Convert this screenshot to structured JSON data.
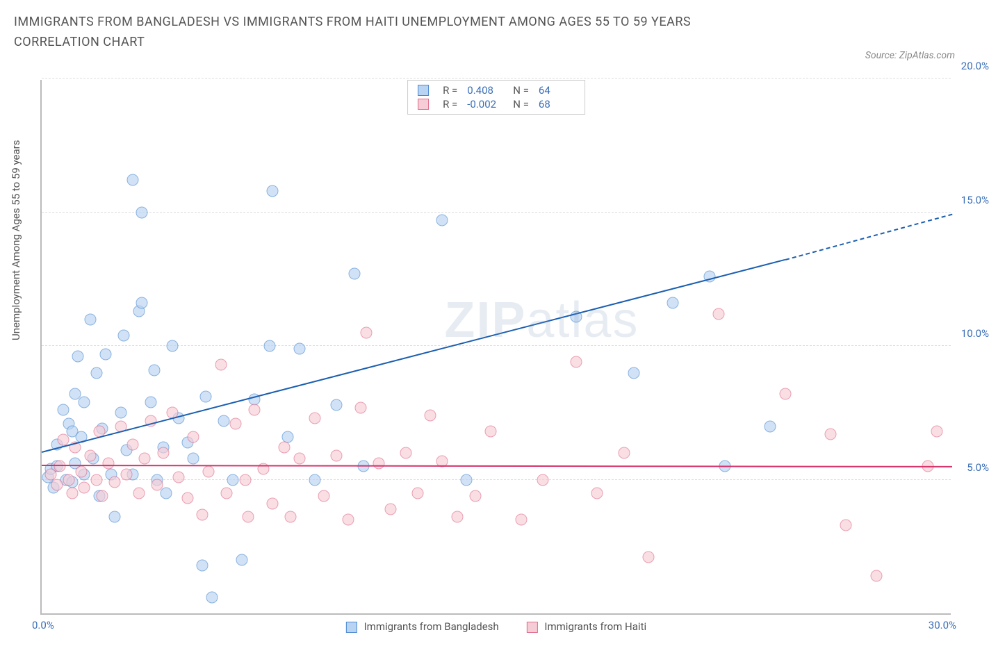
{
  "title": "IMMIGRANTS FROM BANGLADESH VS IMMIGRANTS FROM HAITI UNEMPLOYMENT AMONG AGES 55 TO 59 YEARS CORRELATION CHART",
  "source": "Source: ZipAtlas.com",
  "ylabel": "Unemployment Among Ages 55 to 59 years",
  "watermark_a": "ZIP",
  "watermark_b": "atlas",
  "chart": {
    "type": "scatter",
    "xlim": [
      0,
      30
    ],
    "ylim": [
      0,
      20
    ],
    "yticks": [
      {
        "v": 5,
        "label": "5.0%"
      },
      {
        "v": 10,
        "label": "10.0%"
      },
      {
        "v": 15,
        "label": "15.0%"
      },
      {
        "v": 20,
        "label": "20.0%"
      }
    ],
    "xtick_left": "0.0%",
    "xtick_right": "30.0%",
    "grid_color": "#dddddd",
    "axis_color": "#bbbbbb",
    "background_color": "#ffffff",
    "series": [
      {
        "name": "Immigrants from Bangladesh",
        "fill": "#b9d4f2",
        "stroke": "#4a88cf",
        "trend_color": "#1b5fb0",
        "r": "0.408",
        "n": "64",
        "trend": {
          "x1": 0,
          "y1": 6.0,
          "x2": 24.5,
          "y2": 13.2,
          "dash_to_x": 30,
          "dash_to_y": 14.9
        },
        "points": [
          [
            0.2,
            5.1
          ],
          [
            0.3,
            5.4
          ],
          [
            0.4,
            4.7
          ],
          [
            0.5,
            5.5
          ],
          [
            0.5,
            6.3
          ],
          [
            0.7,
            7.6
          ],
          [
            0.8,
            5.0
          ],
          [
            0.9,
            7.1
          ],
          [
            1.0,
            6.8
          ],
          [
            1.0,
            4.9
          ],
          [
            1.1,
            5.6
          ],
          [
            1.1,
            8.2
          ],
          [
            1.2,
            9.6
          ],
          [
            1.3,
            6.6
          ],
          [
            1.4,
            5.2
          ],
          [
            1.4,
            7.9
          ],
          [
            1.6,
            11.0
          ],
          [
            1.7,
            5.8
          ],
          [
            1.8,
            9.0
          ],
          [
            1.9,
            4.4
          ],
          [
            2.0,
            6.9
          ],
          [
            2.1,
            9.7
          ],
          [
            2.3,
            5.2
          ],
          [
            2.4,
            3.6
          ],
          [
            2.6,
            7.5
          ],
          [
            2.7,
            10.4
          ],
          [
            2.8,
            6.1
          ],
          [
            3.0,
            16.2
          ],
          [
            3.0,
            5.2
          ],
          [
            3.2,
            11.3
          ],
          [
            3.3,
            11.6
          ],
          [
            3.3,
            15.0
          ],
          [
            3.6,
            7.9
          ],
          [
            3.7,
            9.1
          ],
          [
            3.8,
            5.0
          ],
          [
            4.0,
            6.2
          ],
          [
            4.1,
            4.5
          ],
          [
            4.3,
            10.0
          ],
          [
            4.5,
            7.3
          ],
          [
            4.8,
            6.4
          ],
          [
            5.0,
            5.8
          ],
          [
            5.3,
            1.8
          ],
          [
            5.4,
            8.1
          ],
          [
            5.6,
            0.6
          ],
          [
            6.0,
            7.2
          ],
          [
            6.3,
            5.0
          ],
          [
            6.6,
            2.0
          ],
          [
            7.0,
            8.0
          ],
          [
            7.5,
            10.0
          ],
          [
            7.6,
            15.8
          ],
          [
            8.1,
            6.6
          ],
          [
            8.5,
            9.9
          ],
          [
            9.0,
            5.0
          ],
          [
            9.7,
            7.8
          ],
          [
            10.3,
            12.7
          ],
          [
            10.6,
            5.5
          ],
          [
            13.2,
            14.7
          ],
          [
            14.0,
            5.0
          ],
          [
            17.6,
            11.1
          ],
          [
            19.5,
            9.0
          ],
          [
            20.8,
            11.6
          ],
          [
            22.0,
            12.6
          ],
          [
            22.5,
            5.5
          ],
          [
            24.0,
            7.0
          ]
        ]
      },
      {
        "name": "Immigrants from Haiti",
        "fill": "#f6cdd6",
        "stroke": "#e06a8a",
        "trend_color": "#d6336c",
        "r": "-0.002",
        "n": "68",
        "trend": {
          "x1": 0,
          "y1": 5.5,
          "x2": 30,
          "y2": 5.45
        },
        "points": [
          [
            0.3,
            5.2
          ],
          [
            0.5,
            4.8
          ],
          [
            0.6,
            5.5
          ],
          [
            0.7,
            6.5
          ],
          [
            0.9,
            5.0
          ],
          [
            1.0,
            4.5
          ],
          [
            1.1,
            6.2
          ],
          [
            1.3,
            5.3
          ],
          [
            1.4,
            4.7
          ],
          [
            1.6,
            5.9
          ],
          [
            1.8,
            5.0
          ],
          [
            1.9,
            6.8
          ],
          [
            2.0,
            4.4
          ],
          [
            2.2,
            5.6
          ],
          [
            2.4,
            4.9
          ],
          [
            2.6,
            7.0
          ],
          [
            2.8,
            5.2
          ],
          [
            3.0,
            6.3
          ],
          [
            3.2,
            4.5
          ],
          [
            3.4,
            5.8
          ],
          [
            3.6,
            7.2
          ],
          [
            3.8,
            4.8
          ],
          [
            4.0,
            6.0
          ],
          [
            4.3,
            7.5
          ],
          [
            4.5,
            5.1
          ],
          [
            4.8,
            4.3
          ],
          [
            5.0,
            6.6
          ],
          [
            5.3,
            3.7
          ],
          [
            5.5,
            5.3
          ],
          [
            5.9,
            9.3
          ],
          [
            6.1,
            4.5
          ],
          [
            6.4,
            7.1
          ],
          [
            6.7,
            5.0
          ],
          [
            6.8,
            3.6
          ],
          [
            7.0,
            7.6
          ],
          [
            7.3,
            5.4
          ],
          [
            7.6,
            4.1
          ],
          [
            8.0,
            6.2
          ],
          [
            8.2,
            3.6
          ],
          [
            8.5,
            5.8
          ],
          [
            9.0,
            7.3
          ],
          [
            9.3,
            4.4
          ],
          [
            9.7,
            5.9
          ],
          [
            10.1,
            3.5
          ],
          [
            10.5,
            7.7
          ],
          [
            10.7,
            10.5
          ],
          [
            11.1,
            5.6
          ],
          [
            11.5,
            3.9
          ],
          [
            12.0,
            6.0
          ],
          [
            12.4,
            4.5
          ],
          [
            12.8,
            7.4
          ],
          [
            13.2,
            5.7
          ],
          [
            13.7,
            3.6
          ],
          [
            14.3,
            4.4
          ],
          [
            14.8,
            6.8
          ],
          [
            15.8,
            3.5
          ],
          [
            16.5,
            5.0
          ],
          [
            17.6,
            9.4
          ],
          [
            18.3,
            4.5
          ],
          [
            19.2,
            6.0
          ],
          [
            20.0,
            2.1
          ],
          [
            22.3,
            11.2
          ],
          [
            24.5,
            8.2
          ],
          [
            26.0,
            6.7
          ],
          [
            26.5,
            3.3
          ],
          [
            27.5,
            1.4
          ],
          [
            29.2,
            5.5
          ],
          [
            29.5,
            6.8
          ]
        ]
      }
    ]
  },
  "top_legend_labels": {
    "r": "R =",
    "n": "N ="
  }
}
